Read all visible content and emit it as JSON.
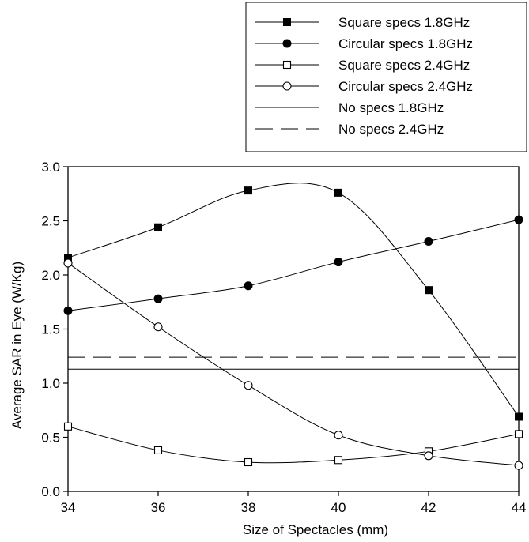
{
  "chart_data": {
    "type": "line",
    "xlabel": "Size of Spectacles (mm)",
    "ylabel": "Average SAR in Eye (W/Kg)",
    "xlim": [
      34,
      44
    ],
    "ylim": [
      0,
      3
    ],
    "x_ticks": [
      "34",
      "36",
      "38",
      "40",
      "42",
      "44"
    ],
    "y_ticks": [
      "0.0",
      "0.5",
      "1.0",
      "1.5",
      "2.0",
      "2.5",
      "3.0"
    ],
    "legend_position": "top-right",
    "series": [
      {
        "name": "Square specs 1.8GHz",
        "marker": "square-filled",
        "line": "solid",
        "x": [
          34,
          36,
          38,
          40,
          42,
          44
        ],
        "y": [
          2.16,
          2.44,
          2.78,
          2.76,
          1.86,
          0.69
        ]
      },
      {
        "name": "Circular specs 1.8GHz",
        "marker": "circle-filled",
        "line": "solid",
        "x": [
          34,
          36,
          38,
          40,
          42,
          44
        ],
        "y": [
          1.67,
          1.78,
          1.9,
          2.12,
          2.31,
          2.51
        ]
      },
      {
        "name": "Square specs 2.4GHz",
        "marker": "square-open",
        "line": "solid",
        "x": [
          34,
          36,
          38,
          40,
          42,
          44
        ],
        "y": [
          0.6,
          0.38,
          0.27,
          0.29,
          0.37,
          0.53
        ]
      },
      {
        "name": "Circular specs 2.4GHz",
        "marker": "circle-open",
        "line": "solid",
        "x": [
          34,
          36,
          38,
          40,
          42,
          44
        ],
        "y": [
          2.11,
          1.52,
          0.98,
          0.52,
          0.33,
          0.24
        ]
      },
      {
        "name": "No specs 1.8GHz",
        "marker": "none",
        "line": "solid",
        "x": [
          34,
          44
        ],
        "y": [
          1.13,
          1.13
        ]
      },
      {
        "name": "No specs 2.4GHz",
        "marker": "none",
        "line": "dashed",
        "x": [
          34,
          44
        ],
        "y": [
          1.24,
          1.24
        ]
      }
    ]
  }
}
